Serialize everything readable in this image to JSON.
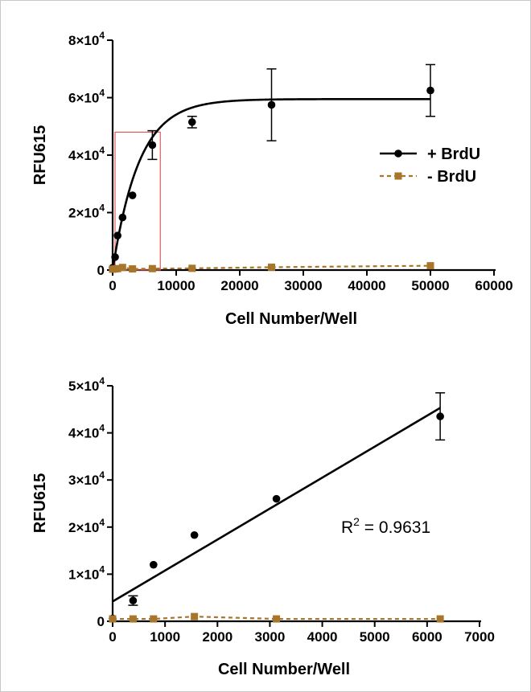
{
  "colors": {
    "brdu_plus": "#000000",
    "brdu_minus": "#a8762a",
    "zoom_box": "#e05a5a"
  },
  "chart_data": [
    {
      "type": "scatter",
      "xlabel": "Cell Number/Well",
      "ylabel": "RFU615",
      "xlim": [
        0,
        60000
      ],
      "ylim": [
        0,
        80000
      ],
      "x_ticks": [
        0,
        10000,
        20000,
        30000,
        40000,
        50000,
        60000
      ],
      "x_tick_labels": [
        "0",
        "10000",
        "20000",
        "30000",
        "40000",
        "50000",
        "60000"
      ],
      "y_ticks": [
        0,
        20000,
        40000,
        60000,
        80000
      ],
      "y_tick_labels": [
        {
          "mant": "0",
          "exp": ""
        },
        {
          "mant": "2×10",
          "exp": "4"
        },
        {
          "mant": "4×10",
          "exp": "4"
        },
        {
          "mant": "6×10",
          "exp": "4"
        },
        {
          "mant": "8×10",
          "exp": "4"
        }
      ],
      "legend": {
        "position": "right",
        "items": [
          "+ BrdU",
          "- BrdU"
        ]
      },
      "series": [
        {
          "name": "+ BrdU",
          "marker": "circle",
          "x": [
            0,
            390,
            780,
            1560,
            3125,
            6250,
            12500,
            25000,
            50000
          ],
          "y": [
            800,
            4500,
            12000,
            18300,
            26000,
            43500,
            51500,
            57500,
            62500
          ],
          "err": [
            0,
            0,
            0,
            0,
            0,
            5000,
            2000,
            12500,
            9000
          ],
          "fit": {
            "type": "exponential",
            "plateau": 59500,
            "k": 0.00024
          }
        },
        {
          "name": "- BrdU",
          "marker": "square",
          "dashed": true,
          "x": [
            0,
            390,
            780,
            1560,
            3125,
            6250,
            12500,
            25000,
            50000
          ],
          "y": [
            300,
            400,
            500,
            900,
            400,
            500,
            600,
            1000,
            1500
          ],
          "err": [
            0,
            0,
            0,
            0,
            0,
            0,
            0,
            0,
            0
          ]
        }
      ],
      "zoom_box": {
        "x": [
          0,
          7500
        ],
        "y": [
          0,
          48000
        ]
      }
    },
    {
      "type": "scatter",
      "xlabel": "Cell Number/Well",
      "ylabel": "RFU615",
      "xlim": [
        0,
        7000
      ],
      "ylim": [
        0,
        50000
      ],
      "x_ticks": [
        0,
        1000,
        2000,
        3000,
        4000,
        5000,
        6000,
        7000
      ],
      "x_tick_labels": [
        "0",
        "1000",
        "2000",
        "3000",
        "4000",
        "5000",
        "6000",
        "7000"
      ],
      "y_ticks": [
        0,
        10000,
        20000,
        30000,
        40000,
        50000
      ],
      "y_tick_labels": [
        {
          "mant": "0",
          "exp": ""
        },
        {
          "mant": "1×10",
          "exp": "4"
        },
        {
          "mant": "2×10",
          "exp": "4"
        },
        {
          "mant": "3×10",
          "exp": "4"
        },
        {
          "mant": "4×10",
          "exp": "4"
        },
        {
          "mant": "5×10",
          "exp": "4"
        }
      ],
      "annotation": {
        "base": "R",
        "sup": "2",
        "rest": " = 0.9631"
      },
      "series": [
        {
          "name": "+ BrdU",
          "marker": "circle",
          "x": [
            0,
            390,
            780,
            1560,
            3125,
            6250
          ],
          "y": [
            600,
            4400,
            12000,
            18300,
            26000,
            43500
          ],
          "err": [
            0,
            1000,
            0,
            0,
            0,
            5000
          ],
          "fit": {
            "type": "linear",
            "x": [
              0,
              6250
            ],
            "y": [
              4200,
              45300
            ]
          }
        },
        {
          "name": "- BrdU",
          "marker": "square",
          "dashed": true,
          "x": [
            0,
            390,
            780,
            1560,
            3125,
            6250
          ],
          "y": [
            500,
            500,
            500,
            1000,
            500,
            500
          ],
          "err": [
            0,
            0,
            0,
            0,
            0,
            0
          ]
        }
      ]
    }
  ]
}
